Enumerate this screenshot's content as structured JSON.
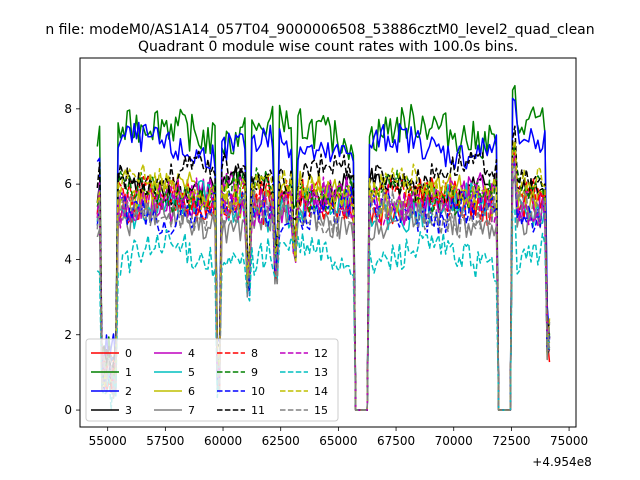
{
  "chart_data": {
    "type": "line",
    "suptitle": "n file: modeM0/AS1A14_057T04_9000006508_53886cztM0_level2_quad_clean",
    "title": "Quadrant 0 module wise count rates with 100.0s bins.",
    "xlabel": "",
    "ylabel": "",
    "x_offset_label": "+4.954e8",
    "xlim": [
      53800,
      75300
    ],
    "ylim": [
      -0.45,
      9.35
    ],
    "xticks": [
      55000,
      57500,
      60000,
      62500,
      65000,
      67500,
      70000,
      72500,
      75000
    ],
    "yticks": [
      0,
      2,
      4,
      6,
      8
    ],
    "x_range": [
      54550,
      74150
    ],
    "bin_seconds": 100,
    "grid": false,
    "legend_position": "lower-left",
    "legend_columns": 4,
    "series": [
      {
        "name": "0",
        "color": "#ff0000",
        "dash": "solid",
        "mean": 5.5,
        "amp": 0.45
      },
      {
        "name": "1",
        "color": "#008000",
        "dash": "solid",
        "mean": 7.4,
        "amp": 0.5
      },
      {
        "name": "2",
        "color": "#0000ff",
        "dash": "solid",
        "mean": 7.0,
        "amp": 0.4
      },
      {
        "name": "3",
        "color": "#000000",
        "dash": "solid",
        "mean": 5.9,
        "amp": 0.35
      },
      {
        "name": "4",
        "color": "#bf00bf",
        "dash": "solid",
        "mean": 5.6,
        "amp": 0.5
      },
      {
        "name": "5",
        "color": "#00bfbf",
        "dash": "solid",
        "mean": 5.4,
        "amp": 0.45
      },
      {
        "name": "6",
        "color": "#bfbf00",
        "dash": "solid",
        "mean": 5.7,
        "amp": 0.4
      },
      {
        "name": "7",
        "color": "#808080",
        "dash": "solid",
        "mean": 5.0,
        "amp": 0.4
      },
      {
        "name": "8",
        "color": "#ff0000",
        "dash": "dashed",
        "mean": 5.6,
        "amp": 0.4
      },
      {
        "name": "9",
        "color": "#008000",
        "dash": "dashed",
        "mean": 5.8,
        "amp": 0.4
      },
      {
        "name": "10",
        "color": "#0000ff",
        "dash": "dashed",
        "mean": 5.3,
        "amp": 0.45
      },
      {
        "name": "11",
        "color": "#000000",
        "dash": "dashed",
        "mean": 6.3,
        "amp": 0.35
      },
      {
        "name": "12",
        "color": "#bf00bf",
        "dash": "dashed",
        "mean": 5.5,
        "amp": 0.45
      },
      {
        "name": "13",
        "color": "#00bfbf",
        "dash": "dashed",
        "mean": 4.1,
        "amp": 0.45
      },
      {
        "name": "14",
        "color": "#bfbf00",
        "dash": "dashed",
        "mean": 5.9,
        "amp": 0.4
      },
      {
        "name": "15",
        "color": "#808080",
        "dash": "dashed",
        "mean": 5.2,
        "amp": 0.4
      }
    ],
    "features": [
      {
        "kind": "dip",
        "from": 54750,
        "to": 55400,
        "level": 1.0
      },
      {
        "kind": "dip",
        "from": 59750,
        "to": 59900,
        "level": 1.0
      },
      {
        "kind": "dip",
        "from": 61000,
        "to": 61200,
        "level": 3.6
      },
      {
        "kind": "dip",
        "from": 62200,
        "to": 62400,
        "level": 4.0
      },
      {
        "kind": "dip",
        "from": 63000,
        "to": 63150,
        "level": 4.3
      },
      {
        "kind": "zero",
        "from": 65750,
        "to": 66250,
        "level": 0.0
      },
      {
        "kind": "zero",
        "from": 71900,
        "to": 72450,
        "level": 0.0
      },
      {
        "kind": "dip",
        "from": 74050,
        "to": 74150,
        "level": 1.8
      }
    ]
  }
}
